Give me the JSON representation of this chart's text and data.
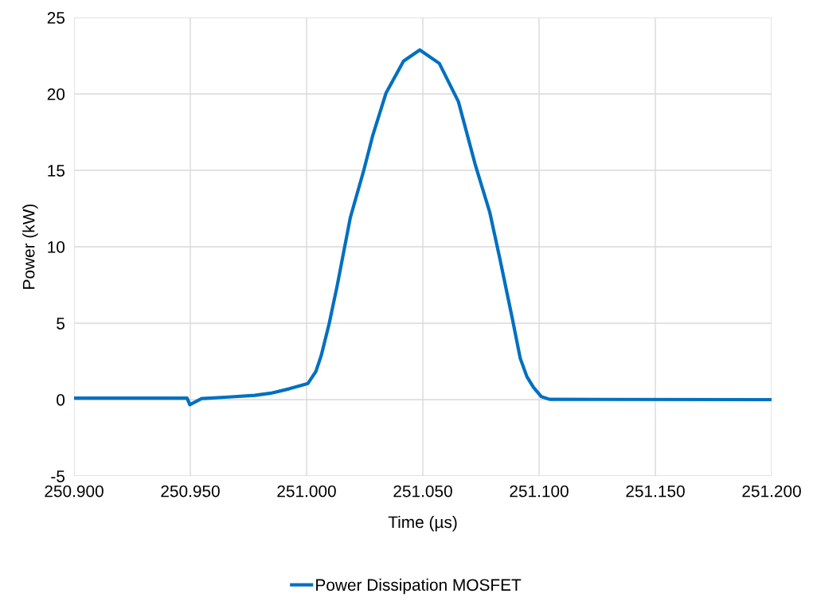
{
  "chart_data": {
    "type": "line",
    "xlabel": "Time (µs)",
    "ylabel": "Power (kW)",
    "xlim": [
      250.9,
      251.2
    ],
    "xticks": [
      {
        "value": 250.9,
        "label": "250.900"
      },
      {
        "value": 250.95,
        "label": "250.950"
      },
      {
        "value": 251.0,
        "label": "251.000"
      },
      {
        "value": 251.05,
        "label": "251.050"
      },
      {
        "value": 251.1,
        "label": "251.100"
      },
      {
        "value": 251.15,
        "label": "251.150"
      },
      {
        "value": 251.2,
        "label": "251.200"
      }
    ],
    "ylim": [
      -5,
      25
    ],
    "yticks": [
      -5,
      0,
      5,
      10,
      15,
      20,
      25
    ],
    "grid": true,
    "legend": "bottom",
    "marker": "none",
    "line_style": "solid",
    "series": [
      {
        "name": "Power Dissipation MOSFET",
        "color": "#0070c0",
        "x": [
          250.9,
          250.9435,
          250.9486,
          250.9498,
          250.9549,
          250.9663,
          250.9777,
          250.9846,
          250.9926,
          251.0006,
          251.004,
          251.0063,
          251.0097,
          251.0131,
          251.0188,
          251.0246,
          251.0285,
          251.0342,
          251.0417,
          251.0487,
          251.0571,
          251.0653,
          251.0725,
          251.0788,
          251.0833,
          251.0885,
          251.0919,
          251.0948,
          251.0976,
          251.101,
          251.1045,
          251.2
        ],
        "values": [
          0.1,
          0.1,
          0.1,
          -0.33,
          0.07,
          0.17,
          0.28,
          0.42,
          0.71,
          1.06,
          1.84,
          2.88,
          4.96,
          7.4,
          11.9,
          15.0,
          17.3,
          20.07,
          22.15,
          22.88,
          22.0,
          19.5,
          15.4,
          12.25,
          9.1,
          5.3,
          2.7,
          1.49,
          0.8,
          0.19,
          0.02,
          0.0
        ]
      }
    ]
  }
}
